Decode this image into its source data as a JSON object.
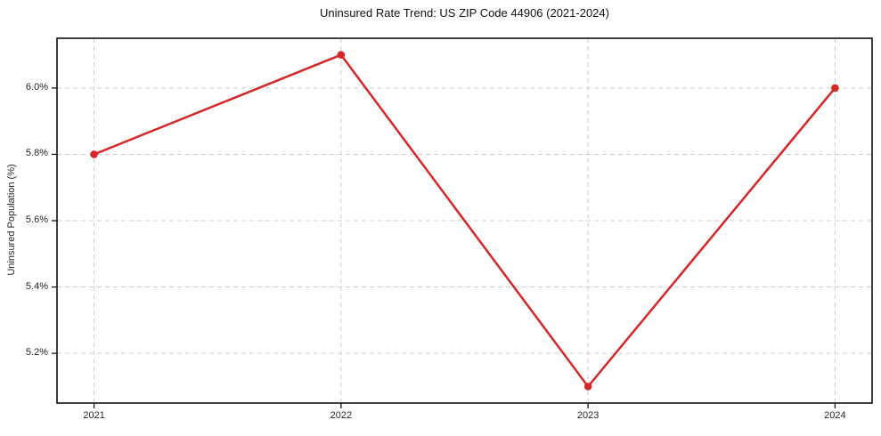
{
  "chart_data": {
    "type": "line",
    "title": "Uninsured Rate Trend: US ZIP Code 44906 (2021-2024)",
    "xlabel": "",
    "ylabel": "Uninsured Population (%)",
    "x": [
      2021,
      2022,
      2023,
      2024
    ],
    "categories": [
      "2021",
      "2022",
      "2023",
      "2024"
    ],
    "values": [
      5.8,
      6.1,
      5.1,
      6.0
    ],
    "xlim": [
      2020.85,
      2024.15
    ],
    "ylim": [
      5.05,
      6.15
    ],
    "xticks": {
      "values": [
        2021,
        2022,
        2023,
        2024
      ],
      "labels": [
        "2021",
        "2022",
        "2023",
        "2024"
      ]
    },
    "yticks": {
      "values": [
        5.2,
        5.4,
        5.6,
        5.8,
        6.0
      ],
      "labels": [
        "5.2%",
        "5.4%",
        "5.6%",
        "5.8%",
        "6.0%"
      ]
    },
    "grid": true,
    "grid_style": "dashed",
    "legend": "none",
    "line_color": "#d62728",
    "marker": "circle",
    "marker_color": "#d62728",
    "grid_color": "#cccccc",
    "axis_color": "#000000",
    "background_color": "#ffffff"
  }
}
